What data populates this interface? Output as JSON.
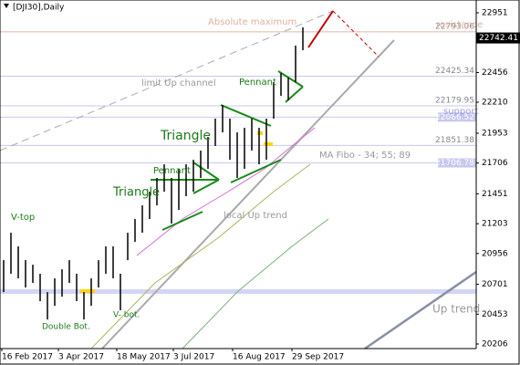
{
  "chart_data": {
    "type": "ohlc",
    "title": "[DJI30],Daily",
    "color": "#000000",
    "highs": [
      20901,
      21128,
      21015,
      20901,
      20863,
      20788,
      20636,
      20750,
      20825,
      20901,
      20788,
      20636,
      20750,
      20901,
      21015,
      21015,
      20788,
      21128,
      21242,
      21355,
      21468,
      21582,
      21695,
      21582,
      21658,
      21695,
      21733,
      21809,
      21922,
      22074,
      22187,
      22074,
      21960,
      21998,
      22074,
      21998,
      22074,
      22376,
      22452,
      22414,
      22679,
      22830
    ],
    "lows": [
      20636,
      20788,
      20750,
      20674,
      20712,
      20561,
      20409,
      20523,
      20598,
      20712,
      20561,
      20409,
      20523,
      20674,
      20788,
      20750,
      20485,
      20901,
      21052,
      21128,
      21242,
      21355,
      21468,
      21204,
      21317,
      21431,
      21468,
      21582,
      21658,
      21847,
      21960,
      21733,
      21582,
      21658,
      21809,
      21695,
      21733,
      22074,
      22263,
      22225,
      22376,
      22641
    ],
    "ylim": [
      20168,
      23057
    ],
    "yticks": [
      22951,
      22456,
      22210,
      21953,
      21706,
      21451,
      21203,
      20956,
      20701,
      20453,
      20206
    ],
    "xticks": [
      "16 Feb 2017",
      "3 Apr 2017",
      "18 May 2017",
      "3 Jul 2017",
      "16 Aug 2017",
      "29 Sep 2017"
    ],
    "current_price": 22742.41,
    "levels": [
      {
        "value": 22793.06,
        "color": "#e8b4a8",
        "boxed": false
      },
      {
        "value": 22425.34,
        "color": "#c8c8ee",
        "boxed": false
      },
      {
        "value": 22179.95,
        "color": "#c8c8ee",
        "boxed": false
      },
      {
        "value": 22086.52,
        "color": "#c8c8ee",
        "boxed": true
      },
      {
        "value": 21851.38,
        "color": "#c8c8ee",
        "boxed": false
      },
      {
        "value": 21706.78,
        "color": "#c8c8ee",
        "boxed": true
      }
    ],
    "annotations": {
      "abs_max": "Absolute maximum",
      "resistance": "resistance",
      "support": "support",
      "ma_fibo": "MA Fibo - 34; 55; 89",
      "limit_channel": "limit Up channel",
      "pennant1": "Pennant",
      "pennant2": "Pennant",
      "triangle1": "Triangle",
      "triangle2": "Triangle",
      "v_top": "V-top",
      "double_bot": "Double Bot.",
      "v_bot": "V- bot.",
      "local_trend": "local Up trend",
      "up_trend": "Up trend"
    }
  }
}
